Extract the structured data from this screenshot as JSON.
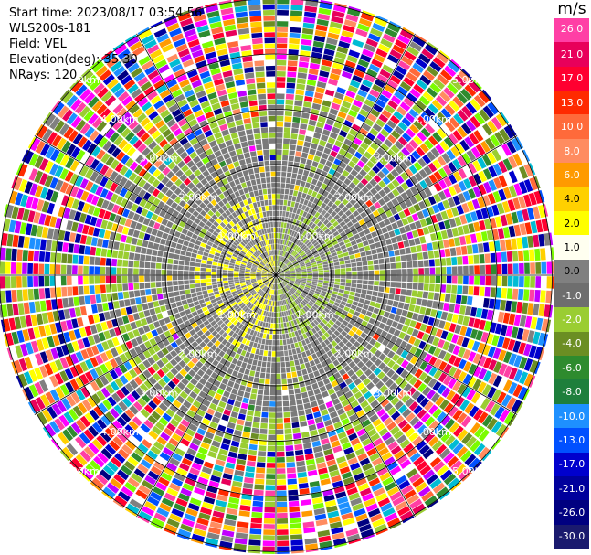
{
  "header": {
    "start_time": "Start time: 2023/08/17 03:54:56",
    "site": "WLS200s-181",
    "field": "Field: VEL",
    "elevation": "Elevation(deg): 35.30",
    "nrays": "NRays: 120"
  },
  "range_labels": [
    "1.00km",
    "2.00km",
    "3.00km",
    "4.00km",
    "5.00km"
  ],
  "colorbar": {
    "unit": "m/s",
    "ticks": [
      "26.0",
      "21.0",
      "17.0",
      "13.0",
      "10.0",
      "8.0",
      "6.0",
      "4.0",
      "2.0",
      "1.0",
      "0.0",
      "-1.0",
      "-2.0",
      "-4.0",
      "-6.0",
      "-8.0",
      "-10.0",
      "-13.0",
      "-17.0",
      "-21.0",
      "-26.0",
      "-30.0"
    ],
    "colors": [
      "#ff3fa5",
      "#e8005a",
      "#ff0030",
      "#ff2a00",
      "#ff6a3a",
      "#ff8c60",
      "#ff9a00",
      "#ffd000",
      "#ffff00",
      "#fffff0",
      "#808080",
      "#6e6e6e",
      "#9acd32",
      "#6b8e23",
      "#2e8b2e",
      "#1e7f3c",
      "#1e90ff",
      "#0050ff",
      "#0000cd",
      "#00009c",
      "#000080",
      "#1a1a6e"
    ]
  }
}
